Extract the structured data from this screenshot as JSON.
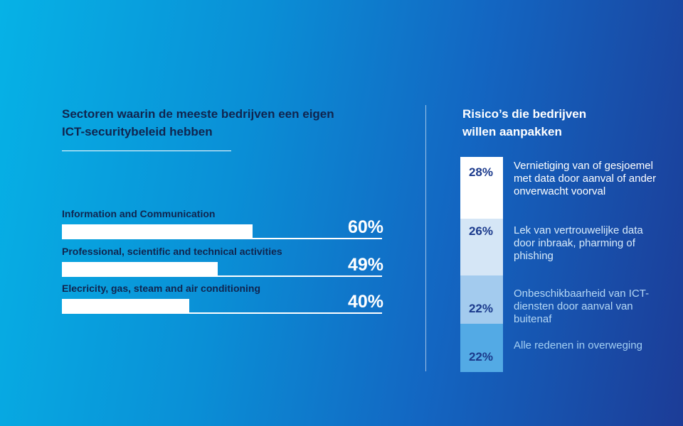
{
  "chart_data": [
    {
      "type": "bar",
      "orientation": "horizontal",
      "title": "Sectoren waarin de meeste bedrijven een eigen ICT-securitybeleid hebben",
      "categories": [
        "Information and Communication",
        "Professional, scientific and technical activities",
        "Elecricity, gas, steam and air conditioning"
      ],
      "values": [
        60,
        49,
        40
      ],
      "value_labels": [
        "60%",
        "49%",
        "40%"
      ],
      "xlim": [
        0,
        100
      ],
      "grid": false,
      "colors": {
        "bar": "#ffffff",
        "label": "#10254f",
        "value": "#ffffff"
      }
    },
    {
      "type": "bar",
      "orientation": "stacked-vertical",
      "title": "Risico’s die bedrijven willen aanpakken",
      "categories": [
        "Vernietiging van of gesjoemel met data door aanval of ander onverwacht voorval",
        "Lek van vertrouwelijke data door inbraak, pharming of phishing",
        "Onbeschikbaarheid van ICT-diensten door aanval van buitenaf",
        "Alle redenen in overweging"
      ],
      "values": [
        28,
        26,
        22,
        22
      ],
      "value_labels": [
        "28%",
        "26%",
        "22%",
        "22%"
      ],
      "colors": {
        "segments": [
          "#ffffff",
          "#d5e6f6",
          "#a3cbee",
          "#53aae5"
        ],
        "value_text": "#1b3a8c",
        "labels": [
          "#ffffff",
          "#d8ebfa",
          "#b5d8f5",
          "#a3cff3"
        ]
      }
    }
  ]
}
